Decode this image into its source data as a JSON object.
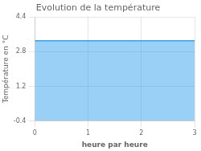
{
  "chart_data": {
    "type": "area",
    "title": "Evolution de la température",
    "xlabel": "heure par heure",
    "ylabel": "Température en °C",
    "x": [
      0,
      3
    ],
    "values": [
      3.3,
      3.3
    ],
    "xlim": [
      0,
      3
    ],
    "ylim": [
      -0.4,
      4.4
    ],
    "xticks": [
      0,
      1,
      2,
      3
    ],
    "yticks": [
      -0.4,
      1.2,
      2.8,
      4.4
    ],
    "grid": true
  }
}
